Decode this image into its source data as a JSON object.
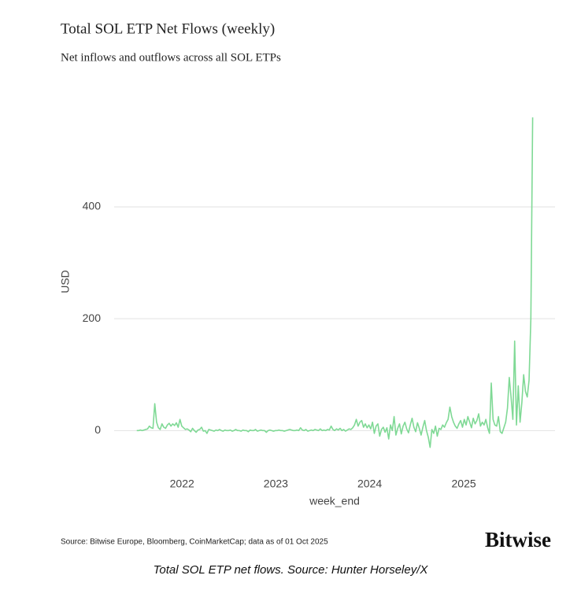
{
  "chart_data": {
    "type": "line",
    "title": "Total SOL ETP Net Flows (weekly)",
    "subtitle": "Net inflows and outflows across all SOL ETPs",
    "y_label": "USD",
    "x_label": "week_end",
    "source": "Source: Bitwise Europe, Bloomberg, CoinMarketCap; data as of 01 Oct 2025",
    "logo": "Bitwise",
    "caption": "Total SOL ETP net flows. Source: Hunter Horseley/X",
    "color": "#7fd995",
    "grid": true,
    "ylim": [
      -60,
      580
    ],
    "yticks": [
      0,
      200,
      400
    ],
    "xlim": [
      "2021-04-12",
      "2025-12-22"
    ],
    "xticks": [
      {
        "value": "2022-01-01",
        "label": "2022"
      },
      {
        "value": "2023-01-01",
        "label": "2023"
      },
      {
        "value": "2024-01-01",
        "label": "2024"
      },
      {
        "value": "2025-01-01",
        "label": "2025"
      }
    ],
    "x": [
      "2021-07-09",
      "2021-07-16",
      "2021-07-23",
      "2021-07-30",
      "2021-08-06",
      "2021-08-13",
      "2021-08-20",
      "2021-08-27",
      "2021-09-03",
      "2021-09-10",
      "2021-09-17",
      "2021-09-24",
      "2021-10-01",
      "2021-10-08",
      "2021-10-15",
      "2021-10-22",
      "2021-10-29",
      "2021-11-05",
      "2021-11-12",
      "2021-11-19",
      "2021-11-26",
      "2021-12-03",
      "2021-12-10",
      "2021-12-17",
      "2021-12-24",
      "2021-12-31",
      "2022-01-07",
      "2022-01-14",
      "2022-01-21",
      "2022-01-28",
      "2022-02-04",
      "2022-02-11",
      "2022-02-18",
      "2022-02-25",
      "2022-03-04",
      "2022-03-11",
      "2022-03-18",
      "2022-03-25",
      "2022-04-01",
      "2022-04-08",
      "2022-04-15",
      "2022-04-22",
      "2022-04-29",
      "2022-05-06",
      "2022-05-13",
      "2022-05-20",
      "2022-05-27",
      "2022-06-03",
      "2022-06-10",
      "2022-06-17",
      "2022-06-24",
      "2022-07-01",
      "2022-07-08",
      "2022-07-15",
      "2022-07-22",
      "2022-07-29",
      "2022-08-05",
      "2022-08-12",
      "2022-08-19",
      "2022-08-26",
      "2022-09-02",
      "2022-09-09",
      "2022-09-16",
      "2022-09-23",
      "2022-09-30",
      "2022-10-07",
      "2022-10-14",
      "2022-10-21",
      "2022-10-28",
      "2022-11-04",
      "2022-11-11",
      "2022-11-18",
      "2022-11-25",
      "2022-12-02",
      "2022-12-09",
      "2022-12-16",
      "2022-12-23",
      "2022-12-30",
      "2023-01-06",
      "2023-01-13",
      "2023-01-20",
      "2023-01-27",
      "2023-02-03",
      "2023-02-10",
      "2023-02-17",
      "2023-02-24",
      "2023-03-03",
      "2023-03-10",
      "2023-03-17",
      "2023-03-24",
      "2023-03-31",
      "2023-04-07",
      "2023-04-14",
      "2023-04-21",
      "2023-04-28",
      "2023-05-05",
      "2023-05-12",
      "2023-05-19",
      "2023-05-26",
      "2023-06-02",
      "2023-06-09",
      "2023-06-16",
      "2023-06-23",
      "2023-06-30",
      "2023-07-07",
      "2023-07-14",
      "2023-07-21",
      "2023-07-28",
      "2023-08-04",
      "2023-08-11",
      "2023-08-18",
      "2023-08-25",
      "2023-09-01",
      "2023-09-08",
      "2023-09-15",
      "2023-09-22",
      "2023-09-29",
      "2023-10-06",
      "2023-10-13",
      "2023-10-20",
      "2023-10-27",
      "2023-11-03",
      "2023-11-10",
      "2023-11-17",
      "2023-11-24",
      "2023-12-01",
      "2023-12-08",
      "2023-12-15",
      "2023-12-22",
      "2023-12-29",
      "2024-01-05",
      "2024-01-12",
      "2024-01-19",
      "2024-01-26",
      "2024-02-02",
      "2024-02-09",
      "2024-02-16",
      "2024-02-23",
      "2024-03-01",
      "2024-03-08",
      "2024-03-15",
      "2024-03-22",
      "2024-03-29",
      "2024-04-05",
      "2024-04-12",
      "2024-04-19",
      "2024-04-26",
      "2024-05-03",
      "2024-05-10",
      "2024-05-17",
      "2024-05-24",
      "2024-05-31",
      "2024-06-07",
      "2024-06-14",
      "2024-06-21",
      "2024-06-28",
      "2024-07-05",
      "2024-07-12",
      "2024-07-19",
      "2024-07-26",
      "2024-08-02",
      "2024-08-09",
      "2024-08-16",
      "2024-08-23",
      "2024-08-30",
      "2024-09-06",
      "2024-09-13",
      "2024-09-20",
      "2024-09-27",
      "2024-10-04",
      "2024-10-11",
      "2024-10-18",
      "2024-10-25",
      "2024-11-01",
      "2024-11-08",
      "2024-11-15",
      "2024-11-22",
      "2024-11-29",
      "2024-12-06",
      "2024-12-13",
      "2024-12-20",
      "2024-12-27",
      "2025-01-03",
      "2025-01-10",
      "2025-01-17",
      "2025-01-24",
      "2025-01-31",
      "2025-02-07",
      "2025-02-14",
      "2025-02-21",
      "2025-02-28",
      "2025-03-07",
      "2025-03-14",
      "2025-03-21",
      "2025-03-28",
      "2025-04-04",
      "2025-04-11",
      "2025-04-18",
      "2025-04-25",
      "2025-05-02",
      "2025-05-09",
      "2025-05-16",
      "2025-05-23",
      "2025-05-30",
      "2025-06-06",
      "2025-06-13",
      "2025-06-20",
      "2025-06-27",
      "2025-07-04",
      "2025-07-11",
      "2025-07-18",
      "2025-07-25",
      "2025-08-01",
      "2025-08-08",
      "2025-08-15",
      "2025-08-22",
      "2025-08-29",
      "2025-09-05",
      "2025-09-12",
      "2025-09-19",
      "2025-09-26"
    ],
    "values": [
      0,
      0,
      1,
      0,
      1,
      2,
      3,
      8,
      5,
      4,
      48,
      15,
      5,
      2,
      12,
      6,
      4,
      10,
      13,
      8,
      12,
      9,
      14,
      6,
      20,
      8,
      5,
      2,
      3,
      1,
      -2,
      4,
      0,
      -3,
      1,
      2,
      6,
      -1,
      0,
      -5,
      2,
      1,
      0,
      -1,
      1,
      0,
      2,
      0,
      -1,
      1,
      0,
      0,
      1,
      -1,
      0,
      2,
      0,
      0,
      -1,
      1,
      0,
      0,
      -2,
      1,
      0,
      0,
      2,
      -1,
      0,
      1,
      0,
      0,
      -3,
      0,
      1,
      0,
      -1,
      0,
      0,
      1,
      0,
      0,
      -1,
      0,
      1,
      2,
      1,
      0,
      0,
      1,
      0,
      5,
      1,
      0,
      2,
      -1,
      0,
      1,
      0,
      2,
      1,
      0,
      3,
      0,
      1,
      0,
      2,
      1,
      8,
      2,
      0,
      3,
      1,
      4,
      0,
      2,
      -1,
      1,
      3,
      2,
      5,
      10,
      20,
      8,
      15,
      18,
      6,
      12,
      5,
      10,
      3,
      15,
      -5,
      8,
      12,
      -10,
      2,
      6,
      -3,
      5,
      -15,
      10,
      0,
      25,
      -8,
      4,
      12,
      -6,
      8,
      15,
      3,
      -4,
      10,
      22,
      6,
      -2,
      14,
      4,
      -8,
      6,
      18,
      0,
      -12,
      -30,
      2,
      -5,
      8,
      -10,
      4,
      2,
      10,
      6,
      14,
      20,
      42,
      25,
      15,
      8,
      4,
      12,
      18,
      6,
      20,
      10,
      25,
      15,
      5,
      22,
      12,
      18,
      30,
      8,
      15,
      10,
      20,
      5,
      -5,
      85,
      20,
      10,
      8,
      25,
      -2,
      -5,
      5,
      15,
      40,
      95,
      60,
      20,
      160,
      10,
      80,
      15,
      50,
      100,
      70,
      60,
      90,
      200,
      560
    ]
  }
}
